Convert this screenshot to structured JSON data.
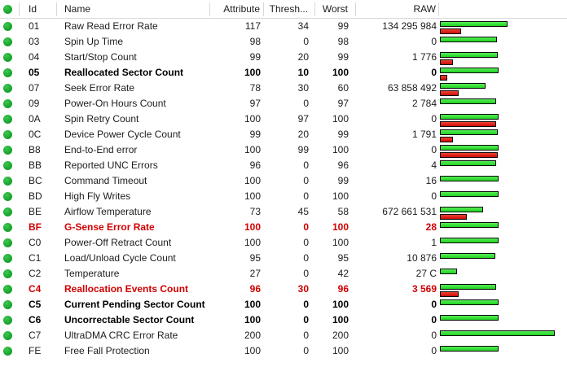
{
  "header": {
    "id": "Id",
    "name": "Name",
    "attribute": "Attribute",
    "threshold": "Thresh...",
    "worst": "Worst",
    "raw": "RAW"
  },
  "colors": {
    "attribute_bar_green": "#2ae42a",
    "threshold_bar_red": "#dd1111",
    "status_dot_green": "#1aa430",
    "alert_text_red": "#d00000"
  },
  "rows": [
    {
      "id": "01",
      "name": "Raw Read Error Rate",
      "attribute": 117,
      "threshold": 34,
      "worst": 99,
      "raw": "134 295 984",
      "style": "normal",
      "status": "ok"
    },
    {
      "id": "03",
      "name": "Spin Up Time",
      "attribute": 98,
      "threshold": 0,
      "worst": 98,
      "raw": "0",
      "style": "normal",
      "status": "ok"
    },
    {
      "id": "04",
      "name": "Start/Stop Count",
      "attribute": 99,
      "threshold": 20,
      "worst": 99,
      "raw": "1 776",
      "style": "normal",
      "status": "ok"
    },
    {
      "id": "05",
      "name": "Reallocated Sector Count",
      "attribute": 100,
      "threshold": 10,
      "worst": 100,
      "raw": "0",
      "style": "bold",
      "status": "ok"
    },
    {
      "id": "07",
      "name": "Seek Error Rate",
      "attribute": 78,
      "threshold": 30,
      "worst": 60,
      "raw": "63 858 492",
      "style": "normal",
      "status": "ok"
    },
    {
      "id": "09",
      "name": "Power-On Hours Count",
      "attribute": 97,
      "threshold": 0,
      "worst": 97,
      "raw": "2 784",
      "style": "normal",
      "status": "ok"
    },
    {
      "id": "0A",
      "name": "Spin Retry Count",
      "attribute": 100,
      "threshold": 97,
      "worst": 100,
      "raw": "0",
      "style": "normal",
      "status": "ok"
    },
    {
      "id": "0C",
      "name": "Device Power Cycle Count",
      "attribute": 99,
      "threshold": 20,
      "worst": 99,
      "raw": "1 791",
      "style": "normal",
      "status": "ok"
    },
    {
      "id": "B8",
      "name": "End-to-End error",
      "attribute": 100,
      "threshold": 99,
      "worst": 100,
      "raw": "0",
      "style": "normal",
      "status": "ok"
    },
    {
      "id": "BB",
      "name": "Reported UNC Errors",
      "attribute": 96,
      "threshold": 0,
      "worst": 96,
      "raw": "4",
      "style": "normal",
      "status": "ok"
    },
    {
      "id": "BC",
      "name": "Command Timeout",
      "attribute": 100,
      "threshold": 0,
      "worst": 99,
      "raw": "16",
      "style": "normal",
      "status": "ok"
    },
    {
      "id": "BD",
      "name": "High Fly Writes",
      "attribute": 100,
      "threshold": 0,
      "worst": 100,
      "raw": "0",
      "style": "normal",
      "status": "ok"
    },
    {
      "id": "BE",
      "name": "Airflow Temperature",
      "attribute": 73,
      "threshold": 45,
      "worst": 58,
      "raw": "672 661 531",
      "style": "normal",
      "status": "ok"
    },
    {
      "id": "BF",
      "name": "G-Sense Error Rate",
      "attribute": 100,
      "threshold": 0,
      "worst": 100,
      "raw": "28",
      "style": "alert",
      "status": "ok"
    },
    {
      "id": "C0",
      "name": "Power-Off Retract Count",
      "attribute": 100,
      "threshold": 0,
      "worst": 100,
      "raw": "1",
      "style": "normal",
      "status": "ok"
    },
    {
      "id": "C1",
      "name": "Load/Unload Cycle Count",
      "attribute": 95,
      "threshold": 0,
      "worst": 95,
      "raw": "10 876",
      "style": "normal",
      "status": "ok"
    },
    {
      "id": "C2",
      "name": "Temperature",
      "attribute": 27,
      "threshold": 0,
      "worst": 42,
      "raw": "27 C",
      "style": "normal",
      "status": "ok"
    },
    {
      "id": "C4",
      "name": "Reallocation Events Count",
      "attribute": 96,
      "threshold": 30,
      "worst": 96,
      "raw": "3 569",
      "style": "alert",
      "status": "ok"
    },
    {
      "id": "C5",
      "name": "Current Pending Sector Count",
      "attribute": 100,
      "threshold": 0,
      "worst": 100,
      "raw": "0",
      "style": "bold",
      "status": "ok"
    },
    {
      "id": "C6",
      "name": "Uncorrectable Sector Count",
      "attribute": 100,
      "threshold": 0,
      "worst": 100,
      "raw": "0",
      "style": "bold",
      "status": "ok"
    },
    {
      "id": "C7",
      "name": "UltraDMA CRC Error Rate",
      "attribute": 200,
      "threshold": 0,
      "worst": 200,
      "raw": "0",
      "style": "normal",
      "status": "ok"
    },
    {
      "id": "FE",
      "name": "Free Fall Protection",
      "attribute": 100,
      "threshold": 0,
      "worst": 100,
      "raw": "0",
      "style": "normal",
      "status": "ok"
    }
  ]
}
